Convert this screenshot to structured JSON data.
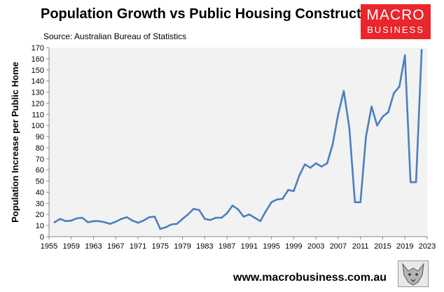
{
  "header": {
    "title": "Population Growth vs Public Housing Construction",
    "source": "Source: Australian Bureau of Statistics"
  },
  "logo": {
    "line1": "MACRO",
    "line2": "BUSINESS"
  },
  "footer": {
    "url": "www.macrobusiness.com.au"
  },
  "colors": {
    "line": "#4a7fc0",
    "plot_bg": "#f2f2f2",
    "logo_bg": "#e8262b",
    "axis": "#888888"
  },
  "chart_data": {
    "type": "line",
    "title": "Population Growth vs Public Housing Construction",
    "subtitle": "Source: Australian Bureau of Statistics",
    "xlabel": "",
    "ylabel": "Population Increase per Public Home",
    "xlim": [
      1955,
      2023
    ],
    "ylim": [
      0,
      170
    ],
    "y_ticks": [
      0,
      10,
      20,
      30,
      40,
      50,
      60,
      70,
      80,
      90,
      100,
      110,
      120,
      130,
      140,
      150,
      160,
      170
    ],
    "x_ticks": [
      1955,
      1959,
      1963,
      1967,
      1971,
      1975,
      1979,
      1983,
      1987,
      1991,
      1995,
      1999,
      2003,
      2007,
      2011,
      2015,
      2019,
      2023
    ],
    "grid": false,
    "series": [
      {
        "x": [
          1956,
          1957,
          1958,
          1959,
          1960,
          1961,
          1962,
          1963,
          1964,
          1965,
          1966,
          1967,
          1968,
          1969,
          1970,
          1971,
          1972,
          1973,
          1974,
          1975,
          1976,
          1977,
          1978,
          1979,
          1980,
          1981,
          1982,
          1983,
          1984,
          1985,
          1986,
          1987,
          1988,
          1989,
          1990,
          1991,
          1992,
          1993,
          1994,
          1995,
          1996,
          1997,
          1998,
          1999,
          2000,
          2001,
          2002,
          2003,
          2004,
          2005,
          2006,
          2007,
          2008,
          2009,
          2010,
          2011,
          2012,
          2013,
          2014,
          2015,
          2016,
          2017,
          2018,
          2019,
          2020,
          2021,
          2022
        ],
        "values": [
          13,
          16,
          14,
          14.5,
          16.5,
          17,
          13,
          14,
          14,
          13,
          11.5,
          13.5,
          16,
          17.5,
          14.5,
          12.5,
          14.5,
          17.5,
          18,
          7,
          8.5,
          11,
          11.5,
          16,
          20,
          25,
          24,
          16,
          15,
          17,
          17,
          21,
          28,
          24.5,
          18,
          20,
          17,
          14,
          23,
          31,
          33.5,
          34,
          42,
          41,
          55,
          65,
          62,
          66,
          63,
          66,
          83,
          110,
          131,
          98,
          31,
          31,
          90,
          117,
          100,
          108,
          112,
          129,
          135,
          163,
          49,
          49,
          168
        ]
      }
    ]
  }
}
